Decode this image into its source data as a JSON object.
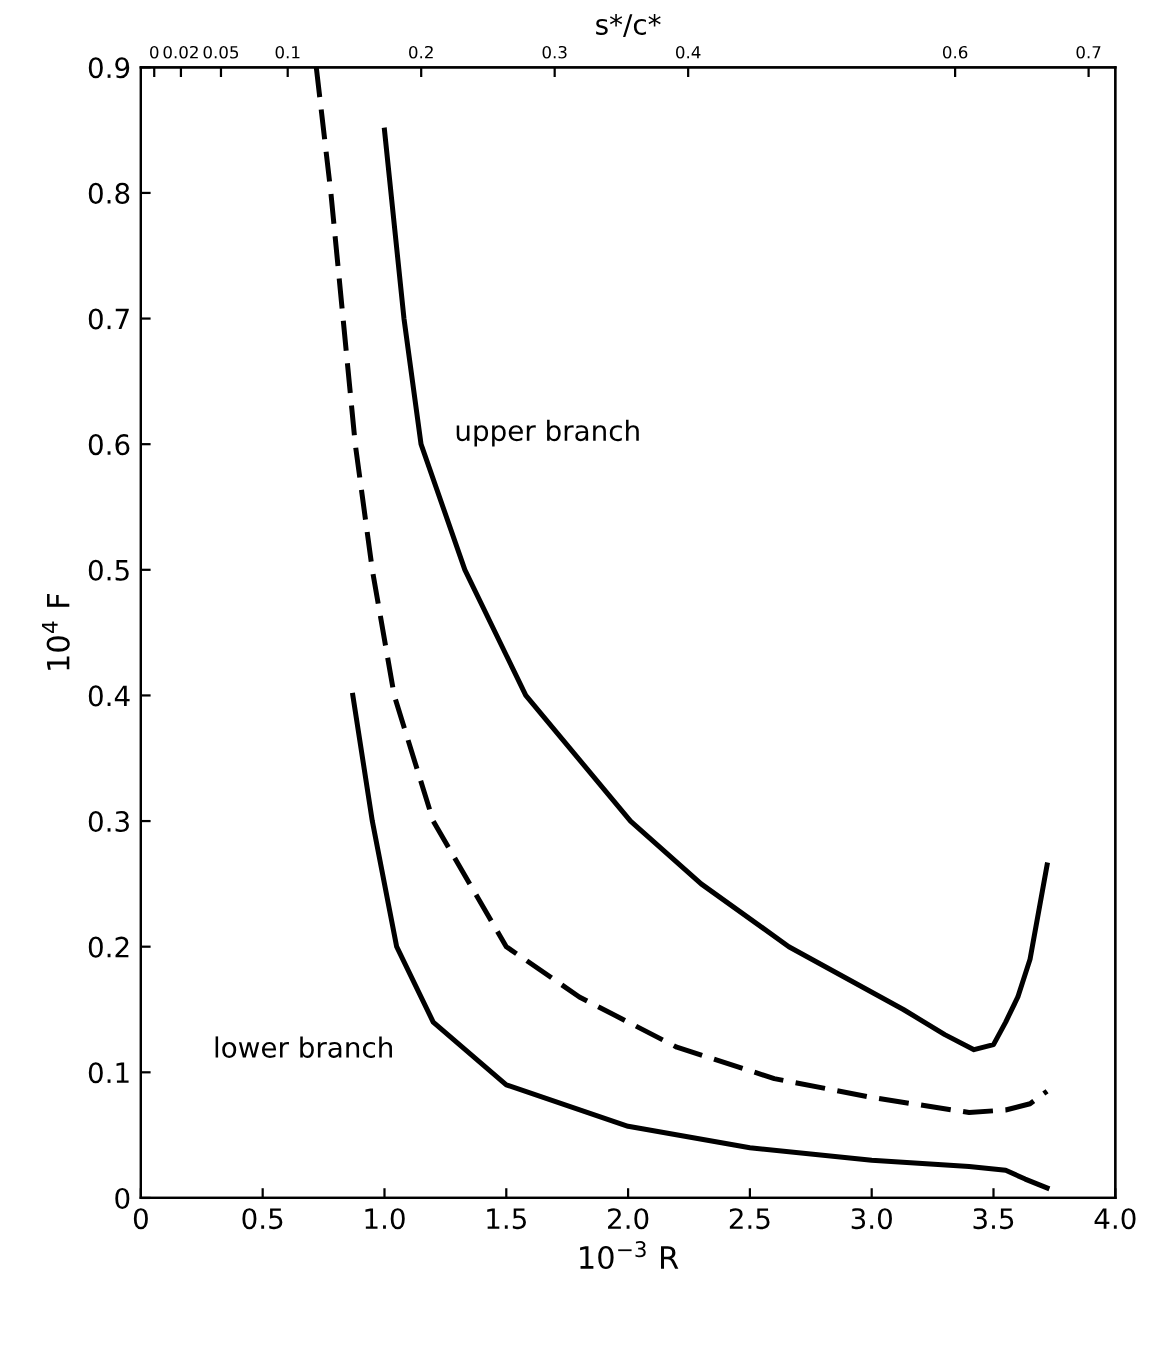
{
  "chart_data": {
    "type": "line",
    "xlabel": "10$^{−3}$ R",
    "ylabel": "10$^{4}$ F",
    "x2label": "s*/c*",
    "xlim": [
      0,
      4.0
    ],
    "ylim": [
      0,
      0.9
    ],
    "xticks": [
      0,
      0.5,
      {
        "value": 1.0,
        "label": "1.0"
      },
      1.5,
      {
        "value": 2.0,
        "label": "2.0"
      },
      2.5,
      {
        "value": 3.0,
        "label": "3.0"
      },
      3.5,
      {
        "value": 4.0,
        "label": "4.0"
      }
    ],
    "yticks": [
      0,
      0.1,
      0.2,
      0.3,
      0.4,
      0.5,
      0.6,
      0.7,
      0.8,
      0.9
    ],
    "x2lim": [
      -0.01,
      0.72
    ],
    "x2ticks": [
      0,
      0.02,
      0.05,
      0.1,
      0.2,
      0.3,
      0.4,
      0.6,
      0.7
    ],
    "grid": false,
    "legend": false,
    "marker": "none",
    "series": [
      {
        "color": "#000000",
        "line_style": "solid",
        "x": [
          1.0,
          1.08,
          1.15,
          1.33,
          1.58,
          2.01,
          2.3,
          2.66,
          3.13,
          3.3,
          3.42,
          3.5,
          3.55,
          3.6,
          3.65,
          3.72
        ],
        "values": [
          0.85,
          0.7,
          0.6,
          0.5,
          0.4,
          0.3,
          0.25,
          0.2,
          0.15,
          0.13,
          0.118,
          0.122,
          0.14,
          0.16,
          0.19,
          0.265
        ]
      },
      {
        "color": "#000000",
        "line_style": "dashed",
        "x": [
          0.72,
          0.78,
          0.83,
          0.88,
          0.95,
          1.04,
          1.2,
          1.5,
          1.8,
          2.2,
          2.6,
          3.0,
          3.4,
          3.55,
          3.65,
          3.72
        ],
        "values": [
          0.9,
          0.8,
          0.7,
          0.6,
          0.5,
          0.4,
          0.3,
          0.2,
          0.16,
          0.12,
          0.095,
          0.08,
          0.068,
          0.07,
          0.075,
          0.085
        ]
      },
      {
        "color": "#000000",
        "line_style": "solid",
        "x": [
          0.87,
          0.95,
          1.05,
          1.2,
          1.5,
          2.0,
          2.5,
          3.0,
          3.4,
          3.55,
          3.63,
          3.72
        ],
        "values": [
          0.4,
          0.3,
          0.2,
          0.14,
          0.09,
          0.057,
          0.04,
          0.03,
          0.025,
          0.022,
          0.015,
          0.008
        ]
      }
    ],
    "annotations": [
      {
        "text": "upper branch",
        "x": 1.15,
        "y": 0.6
      },
      {
        "text": "lower branch",
        "x": 1.2,
        "y": 0.14
      }
    ]
  }
}
